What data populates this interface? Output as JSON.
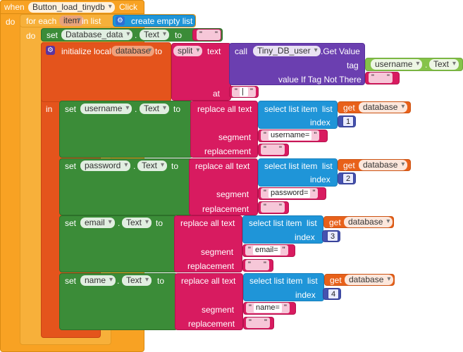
{
  "event": {
    "when": "when",
    "component": "Button_load_tinydb",
    "event_name": "Click",
    "do": "do"
  },
  "loop": {
    "for_each": "for each",
    "item": "item",
    "in_list": "in list",
    "create_empty_list": "create empty list",
    "do": "do"
  },
  "set_db": {
    "set": "set",
    "component": "Database_data",
    "property": "Text",
    "to": "to",
    "value": ""
  },
  "init": {
    "label": "initialize local",
    "var": "database",
    "to": "to",
    "in": "in",
    "split": "split",
    "text": "text",
    "call": "call",
    "tinydb": "Tiny_DB_user",
    "method": ".Get Value",
    "tag": "tag",
    "tag_component": "username",
    "tag_property": "Text",
    "value_if_tag_not_there": "value If Tag Not There",
    "vitnt_value": "",
    "at": "at",
    "at_value": "|"
  },
  "rows": [
    {
      "set": "set",
      "component": "username",
      "property": "Text",
      "to": "to",
      "replace_all_text": "replace all text",
      "select_list_item": "select list item",
      "list": "list",
      "get": "get",
      "get_var": "database",
      "index": "index",
      "index_value": "1",
      "segment": "segment",
      "segment_value": "username=",
      "replacement": "replacement",
      "replacement_value": ""
    },
    {
      "set": "set",
      "component": "password",
      "property": "Text",
      "to": "to",
      "replace_all_text": "replace all text",
      "select_list_item": "select list item",
      "list": "list",
      "get": "get",
      "get_var": "database",
      "index": "index",
      "index_value": "2",
      "segment": "segment",
      "segment_value": "password=",
      "replacement": "replacement",
      "replacement_value": ""
    },
    {
      "set": "set",
      "component": "email",
      "property": "Text",
      "to": "to",
      "replace_all_text": "replace all text",
      "select_list_item": "select list item",
      "list": "list",
      "get": "get",
      "get_var": "database",
      "index": "index",
      "index_value": "3",
      "segment": "segment",
      "segment_value": "email=",
      "replacement": "replacement",
      "replacement_value": ""
    },
    {
      "set": "set",
      "component": "name",
      "property": "Text",
      "to": "to",
      "replace_all_text": "replace all text",
      "select_list_item": "select list item",
      "list": "list",
      "get": "get",
      "get_var": "database",
      "index": "index",
      "index_value": "4",
      "segment": "segment",
      "segment_value": "name=",
      "replacement": "replacement",
      "replacement_value": ""
    }
  ],
  "icons": {
    "list_icon": "list-gear-icon",
    "local_icon": "gear-icon",
    "dropdown": "chevron-down-icon"
  },
  "colors": {
    "event": "#f8a223",
    "loop": "#f7b03a",
    "set": "#3b8c38",
    "variable": "#e4541c",
    "text": "#d81b60",
    "tinydb": "#6b3fb0",
    "list": "#1f95d8",
    "math": "#4552b0"
  }
}
